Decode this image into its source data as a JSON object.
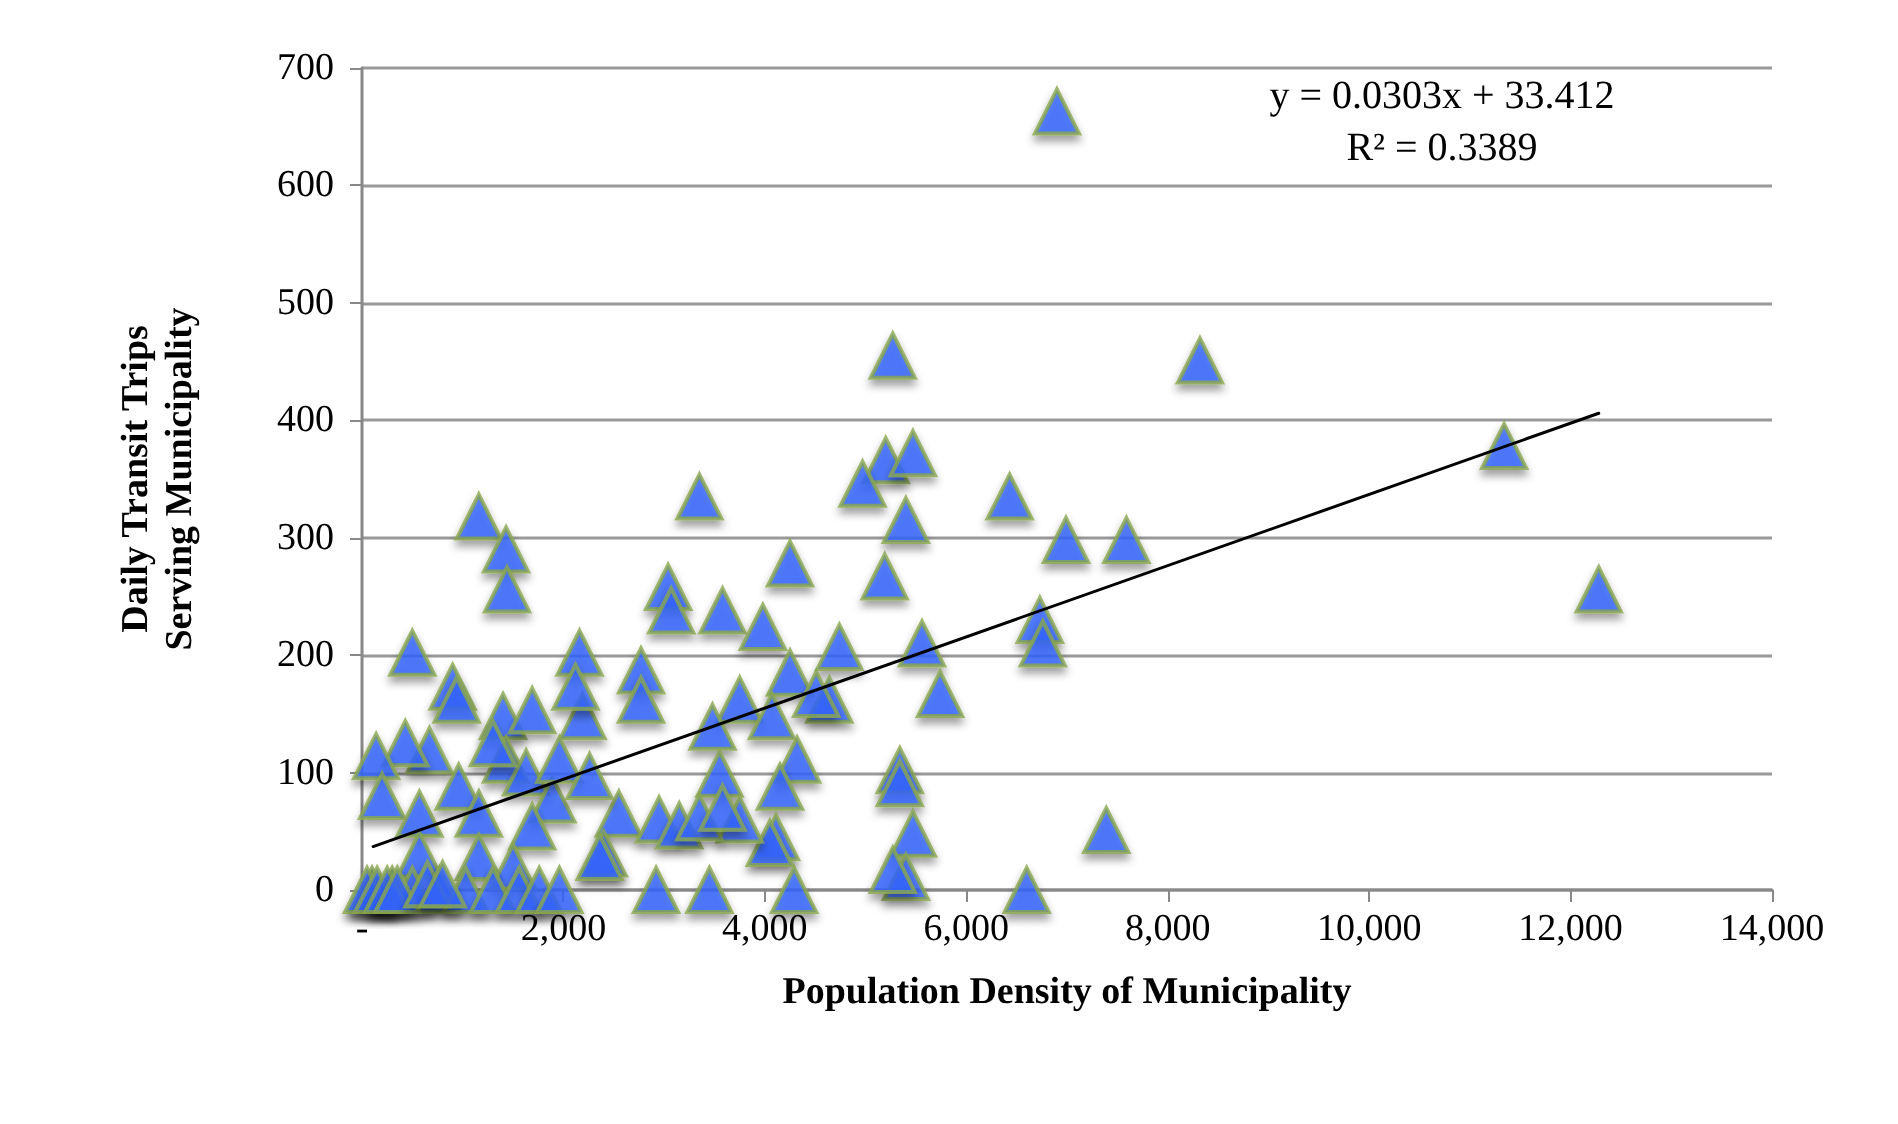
{
  "chart_data": {
    "type": "scatter",
    "xlabel": "Population Density of Municipality",
    "ylabel": "Daily Transit Trips Serving Municipality",
    "annotations": [
      "y = 0.0303x + 33.412",
      "R² = 0.3389"
    ],
    "xlim": [
      0,
      14000
    ],
    "xticks": [
      {
        "value": 0,
        "label": "-"
      },
      {
        "value": 2000,
        "label": "2,000"
      },
      {
        "value": 4000,
        "label": "4,000"
      },
      {
        "value": 6000,
        "label": "6,000"
      },
      {
        "value": 8000,
        "label": "8,000"
      },
      {
        "value": 10000,
        "label": "10,000"
      },
      {
        "value": 12000,
        "label": "12,000"
      },
      {
        "value": 14000,
        "label": "14,000"
      }
    ],
    "ylim": [
      0,
      700
    ],
    "yticks": [
      0,
      100,
      200,
      300,
      400,
      500,
      600,
      700
    ],
    "grid": "y",
    "marker": "triangle",
    "series": [
      {
        "type": "scatter",
        "color": "#3366ff",
        "x": [
          6900,
          5270,
          8320,
          5200,
          5470,
          4970,
          3350,
          5400,
          6430,
          6990,
          7590,
          4250,
          5190,
          3040,
          3070,
          3580,
          3980,
          6730,
          6760,
          4740,
          5560,
          5740,
          2770,
          2770,
          4250,
          4640,
          4510,
          3750,
          3480,
          4070,
          3550,
          4320,
          4150,
          5340,
          5340,
          5470,
          7390,
          4110,
          4050,
          3750,
          5400,
          5270,
          2920,
          3450,
          4290,
          6600,
          2550,
          2950,
          3150,
          3350,
          3580,
          2400,
          11340,
          12280,
          1160,
          1430,
          1440,
          500,
          900,
          940,
          2160,
          2190,
          2120,
          1400,
          1690,
          670,
          430,
          140,
          200,
          570,
          960,
          1160,
          1430,
          1630,
          1890,
          1960,
          2260,
          1690,
          1300,
          2360,
          570,
          1160,
          1500,
          100,
          300,
          500,
          770,
          1030,
          1300,
          1560,
          1760,
          1960,
          50,
          150,
          250,
          350,
          650,
          800
        ],
        "values": [
          663,
          455,
          451,
          366,
          372,
          346,
          335,
          315,
          335,
          298,
          298,
          278,
          267,
          258,
          238,
          238,
          224,
          230,
          210,
          207,
          210,
          167,
          187,
          162,
          185,
          162,
          167,
          162,
          139,
          148,
          99,
          111,
          88,
          102,
          91,
          48,
          51,
          45,
          40,
          60,
          11,
          17,
          0,
          0,
          0,
          0,
          65,
          60,
          55,
          62,
          70,
          31,
          378,
          256,
          318,
          290,
          256,
          202,
          173,
          162,
          202,
          148,
          173,
          148,
          153,
          119,
          125,
          114,
          80,
          65,
          88,
          65,
          111,
          100,
          77,
          111,
          97,
          54,
          125,
          28,
          30,
          28,
          20,
          0,
          0,
          0,
          0,
          0,
          0,
          0,
          0,
          0,
          0,
          0,
          0,
          0,
          5,
          5
        ]
      },
      {
        "type": "line",
        "color": "#000000",
        "marker": "none",
        "x": [
          110,
          12280
        ],
        "values": [
          37,
          406
        ]
      }
    ]
  }
}
